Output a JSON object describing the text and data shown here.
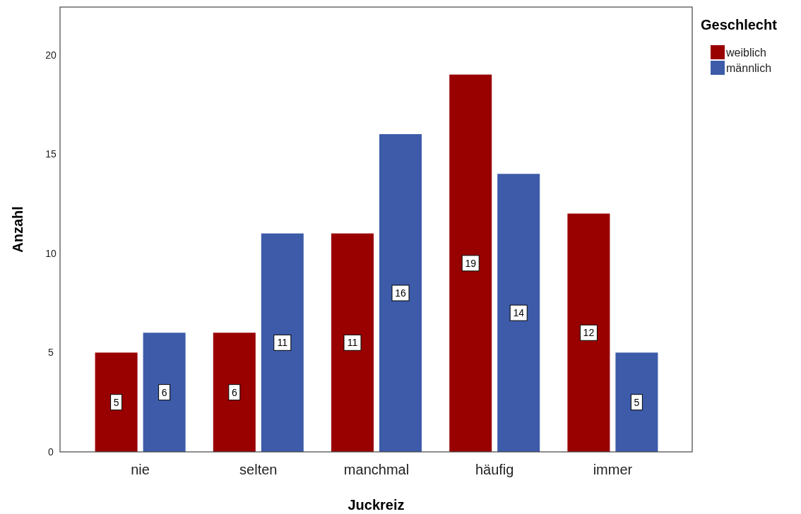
{
  "chart_data": {
    "type": "bar",
    "xlabel": "Juckreiz",
    "ylabel": "Anzahl",
    "legend_title": "Geschlecht",
    "categories": [
      "nie",
      "selten",
      "manchmal",
      "häufig",
      "immer"
    ],
    "series": [
      {
        "name": "weiblich",
        "color": "#990000",
        "values": [
          5,
          6,
          11,
          19,
          12
        ]
      },
      {
        "name": "männlich",
        "color": "#3d5ba9",
        "values": [
          6,
          11,
          16,
          14,
          5
        ]
      }
    ],
    "ylim": [
      0,
      22.4
    ],
    "yticks": [
      0,
      5,
      10,
      15,
      20
    ],
    "grid": false,
    "legend": "top right",
    "data_labels": true
  }
}
